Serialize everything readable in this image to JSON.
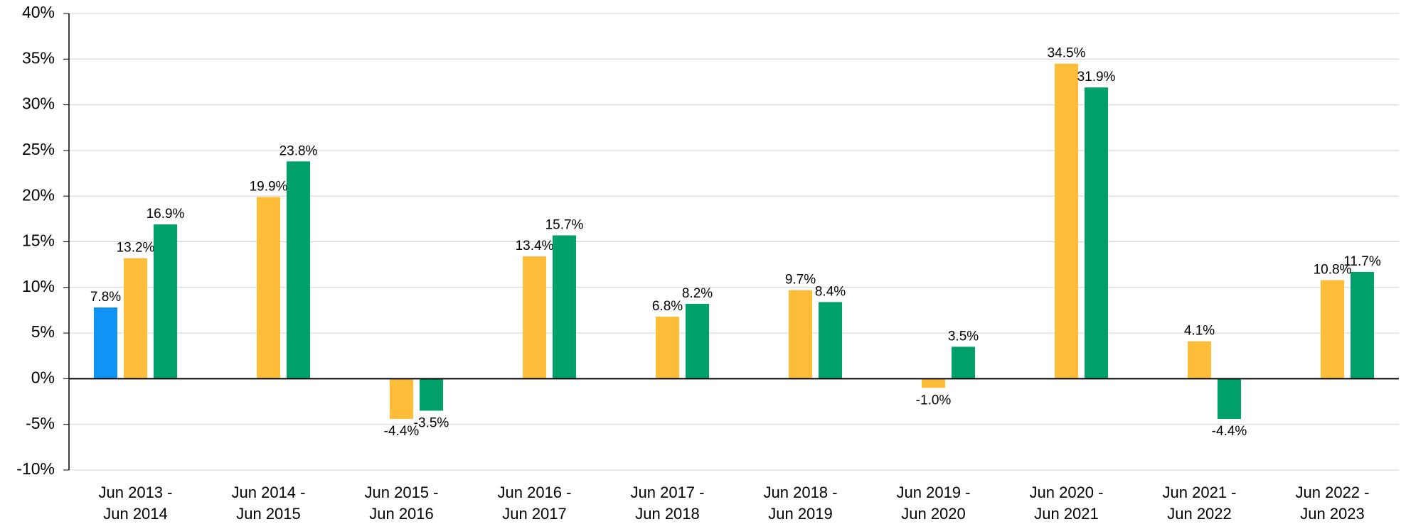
{
  "chart_data": {
    "type": "bar",
    "categories": [
      [
        "Jun 2013 -",
        "Jun 2014"
      ],
      [
        "Jun 2014 -",
        "Jun 2015"
      ],
      [
        "Jun 2015 -",
        "Jun 2016"
      ],
      [
        "Jun 2016 -",
        "Jun 2017"
      ],
      [
        "Jun 2017 -",
        "Jun 2018"
      ],
      [
        "Jun 2018 -",
        "Jun 2019"
      ],
      [
        "Jun 2019 -",
        "Jun 2020"
      ],
      [
        "Jun 2020 -",
        "Jun 2021"
      ],
      [
        "Jun 2021 -",
        "Jun 2022"
      ],
      [
        "Jun 2022 -",
        "Jun 2023"
      ]
    ],
    "series": [
      {
        "color": "#0f93f5",
        "values": [
          7.8,
          null,
          null,
          null,
          null,
          null,
          null,
          null,
          null,
          null
        ],
        "value_labels": [
          "7.8%",
          null,
          null,
          null,
          null,
          null,
          null,
          null,
          null,
          null
        ]
      },
      {
        "color": "#fdbd39",
        "values": [
          13.2,
          19.9,
          -4.4,
          13.4,
          6.8,
          9.7,
          -1.0,
          34.5,
          4.1,
          10.8
        ],
        "value_labels": [
          "13.2%",
          "19.9%",
          "-4.4%",
          "13.4%",
          "6.8%",
          "9.7%",
          "-1.0%",
          "34.5%",
          "4.1%",
          "10.8%"
        ]
      },
      {
        "color": "#00a06b",
        "values": [
          16.9,
          23.8,
          -3.5,
          15.7,
          8.2,
          8.4,
          3.5,
          31.9,
          -4.4,
          11.7
        ],
        "value_labels": [
          "16.9%",
          "23.8%",
          "-3.5%",
          "15.7%",
          "8.2%",
          "8.4%",
          "3.5%",
          "31.9%",
          "-4.4%",
          "11.7%"
        ]
      }
    ],
    "ylim": [
      -10,
      40
    ],
    "yticks": [
      {
        "value": -10,
        "label": "-10%"
      },
      {
        "value": -5,
        "label": "-5%"
      },
      {
        "value": 0,
        "label": "0%"
      },
      {
        "value": 5,
        "label": "5%"
      },
      {
        "value": 10,
        "label": "10%"
      },
      {
        "value": 15,
        "label": "15%"
      },
      {
        "value": 20,
        "label": "20%"
      },
      {
        "value": 25,
        "label": "25%"
      },
      {
        "value": 30,
        "label": "30%"
      },
      {
        "value": 35,
        "label": "35%"
      },
      {
        "value": 40,
        "label": "40%"
      }
    ],
    "grid": true
  }
}
